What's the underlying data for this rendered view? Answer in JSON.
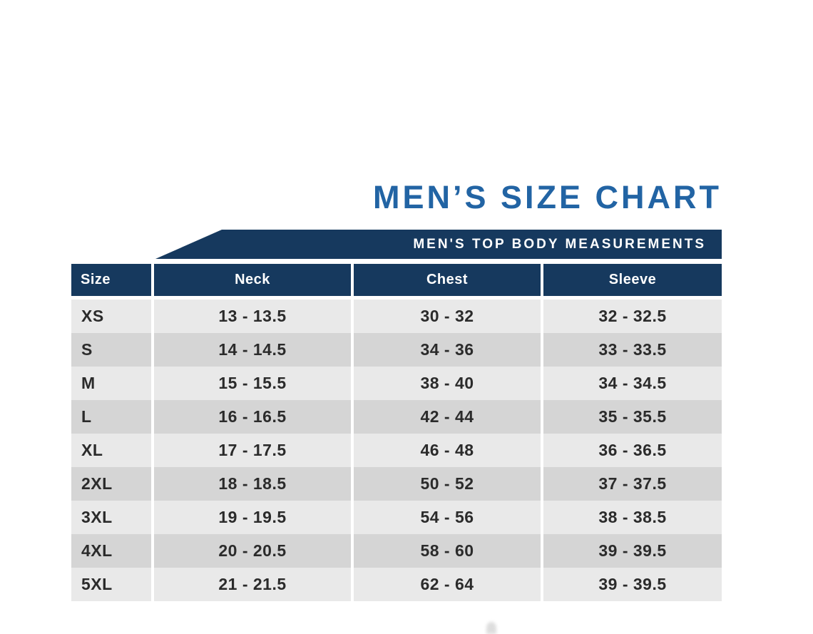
{
  "title": {
    "text": "MEN’S SIZE CHART"
  },
  "banner": {
    "text": "MEN'S TOP BODY MEASUREMENTS"
  },
  "table": {
    "columns": [
      "Size",
      "Neck",
      "Chest",
      "Sleeve"
    ],
    "rows": [
      [
        "XS",
        "13 - 13.5",
        "30 - 32",
        "32 - 32.5"
      ],
      [
        "S",
        "14 - 14.5",
        "34 - 36",
        "33 - 33.5"
      ],
      [
        "M",
        "15 - 15.5",
        "38 - 40",
        "34 - 34.5"
      ],
      [
        "L",
        "16 - 16.5",
        "42 - 44",
        "35 - 35.5"
      ],
      [
        "XL",
        "17 - 17.5",
        "46 - 48",
        "36 - 36.5"
      ],
      [
        "2XL",
        "18 - 18.5",
        "50 - 52",
        "37 - 37.5"
      ],
      [
        "3XL",
        "19 - 19.5",
        "54 - 56",
        "38 - 38.5"
      ],
      [
        "4XL",
        "20 - 20.5",
        "58 - 60",
        "39 - 39.5"
      ],
      [
        "5XL",
        "21 - 21.5",
        "62 - 64",
        "39 - 39.5"
      ]
    ]
  },
  "colors": {
    "title_blue": "#2264a4",
    "banner_navy": "#16395e",
    "header_navy": "#16395e",
    "row_light": "#e9e9e9",
    "row_dark": "#d5d5d5",
    "body_text": "#2b2b2b",
    "banner_text": "#ffffff"
  },
  "chart_data": {
    "type": "table",
    "title": "MEN’S SIZE CHART",
    "subtitle": "MEN'S TOP BODY MEASUREMENTS",
    "columns": [
      "Size",
      "Neck",
      "Chest",
      "Sleeve"
    ],
    "rows": [
      [
        "XS",
        "13 - 13.5",
        "30 - 32",
        "32 - 32.5"
      ],
      [
        "S",
        "14 - 14.5",
        "34 - 36",
        "33 - 33.5"
      ],
      [
        "M",
        "15 - 15.5",
        "38 - 40",
        "34 - 34.5"
      ],
      [
        "L",
        "16 - 16.5",
        "42 - 44",
        "35 - 35.5"
      ],
      [
        "XL",
        "17 - 17.5",
        "46 - 48",
        "36 - 36.5"
      ],
      [
        "2XL",
        "18 - 18.5",
        "50 - 52",
        "37 - 37.5"
      ],
      [
        "3XL",
        "19 - 19.5",
        "54 - 56",
        "38 - 38.5"
      ],
      [
        "4XL",
        "20 - 20.5",
        "58 - 60",
        "39 - 39.5"
      ],
      [
        "5XL",
        "21 - 21.5",
        "62 - 64",
        "39 - 39.5"
      ]
    ]
  }
}
